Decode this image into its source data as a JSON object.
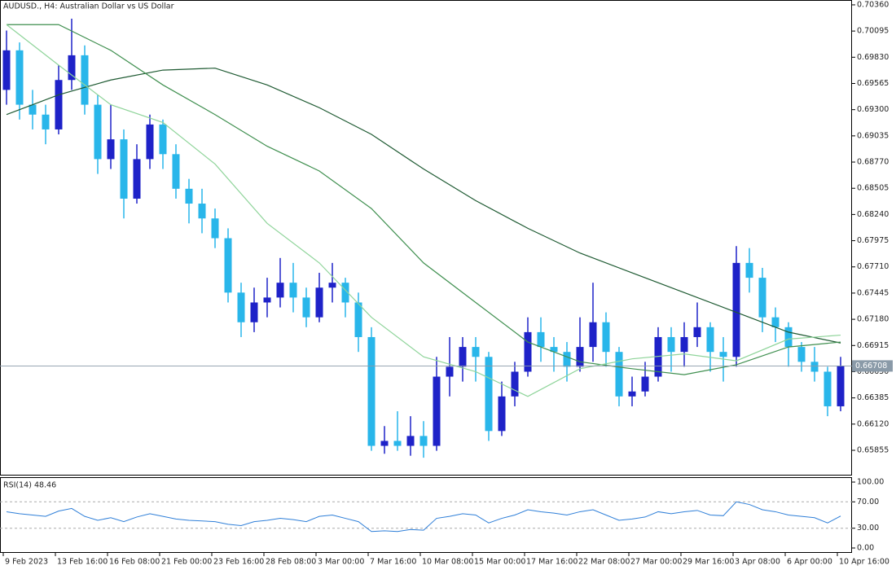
{
  "chart_data": {
    "type": "candlestick",
    "title": "AUDUSD., H4:  Australian Dollar vs US Dollar",
    "categories": [
      "9 Feb 2023",
      null,
      null,
      null,
      "13 Feb 16:00",
      null,
      null,
      null,
      "16 Feb 08:00",
      null,
      null,
      null,
      "21 Feb 00:00",
      null,
      null,
      null,
      "23 Feb 16:00",
      null,
      null,
      null,
      "28 Feb 08:00",
      null,
      null,
      null,
      "3 Mar 00:00",
      null,
      null,
      null,
      "7 Mar 16:00",
      null,
      null,
      null,
      "10 Mar 08:00",
      null,
      null,
      null,
      "15 Mar 00:00",
      null,
      null,
      null,
      "17 Mar 16:00",
      null,
      null,
      null,
      "22 Mar 08:00",
      null,
      null,
      null,
      "27 Mar 00:00",
      null,
      null,
      null,
      "29 Mar 16:00",
      null,
      null,
      null,
      "3 Apr 08:00",
      null,
      null,
      null,
      "6 Apr 00:00",
      null,
      null,
      null,
      "10 Apr 16:00"
    ],
    "open": [
      0.695,
      0.699,
      0.6935,
      0.6925,
      0.691,
      0.696,
      0.6985,
      0.6935,
      0.688,
      0.69,
      0.684,
      0.688,
      0.6915,
      0.6885,
      0.685,
      0.6835,
      0.682,
      0.68,
      0.6745,
      0.6715,
      0.6735,
      0.674,
      0.6755,
      0.674,
      0.672,
      0.675,
      0.6755,
      0.6735,
      0.67,
      0.659,
      0.6595,
      0.659,
      0.66,
      0.659,
      0.666,
      0.667,
      0.669,
      0.668,
      0.6605,
      0.664,
      0.6665,
      0.6705,
      0.669,
      0.6685,
      0.667,
      0.669,
      0.6715,
      0.6685,
      0.664,
      0.6645,
      0.666,
      0.67,
      0.6685,
      0.67,
      0.671,
      0.6685,
      0.668,
      0.6775,
      0.676,
      0.672,
      0.671,
      0.669,
      0.6675,
      0.6665,
      0.663
    ],
    "high": [
      0.701,
      0.6998,
      0.695,
      0.6935,
      0.6975,
      0.7022,
      0.6995,
      0.6945,
      0.6935,
      0.691,
      0.6895,
      0.6925,
      0.692,
      0.6895,
      0.686,
      0.685,
      0.683,
      0.681,
      0.6755,
      0.675,
      0.676,
      0.678,
      0.6775,
      0.675,
      0.6765,
      0.6775,
      0.676,
      0.6745,
      0.671,
      0.661,
      0.6625,
      0.662,
      0.6615,
      0.668,
      0.67,
      0.67,
      0.67,
      0.6685,
      0.6655,
      0.6675,
      0.672,
      0.672,
      0.67,
      0.6695,
      0.672,
      0.6755,
      0.6725,
      0.669,
      0.666,
      0.6675,
      0.671,
      0.671,
      0.6715,
      0.6735,
      0.6715,
      0.67,
      0.6792,
      0.679,
      0.677,
      0.673,
      0.6715,
      0.6695,
      0.669,
      0.667,
      0.668
    ],
    "low": [
      0.6935,
      0.692,
      0.691,
      0.6895,
      0.6905,
      0.695,
      0.6925,
      0.6865,
      0.687,
      0.682,
      0.6835,
      0.687,
      0.687,
      0.684,
      0.6815,
      0.6805,
      0.679,
      0.6735,
      0.67,
      0.6705,
      0.672,
      0.673,
      0.6725,
      0.671,
      0.6715,
      0.6735,
      0.672,
      0.6685,
      0.6585,
      0.6582,
      0.6585,
      0.658,
      0.6578,
      0.6585,
      0.664,
      0.6655,
      0.6655,
      0.6595,
      0.66,
      0.663,
      0.666,
      0.6675,
      0.6665,
      0.6655,
      0.6665,
      0.6675,
      0.667,
      0.663,
      0.663,
      0.664,
      0.6655,
      0.6665,
      0.667,
      0.669,
      0.6665,
      0.6655,
      0.667,
      0.6745,
      0.6705,
      0.6695,
      0.667,
      0.6665,
      0.6655,
      0.662,
      0.6625
    ],
    "close": [
      0.699,
      0.6935,
      0.6925,
      0.691,
      0.696,
      0.6985,
      0.6935,
      0.688,
      0.69,
      0.684,
      0.688,
      0.6915,
      0.6885,
      0.685,
      0.6835,
      0.682,
      0.68,
      0.6745,
      0.6715,
      0.6735,
      0.674,
      0.6755,
      0.674,
      0.672,
      0.675,
      0.6755,
      0.6735,
      0.67,
      0.659,
      0.6595,
      0.659,
      0.66,
      0.659,
      0.666,
      0.667,
      0.669,
      0.668,
      0.6605,
      0.664,
      0.6665,
      0.6705,
      0.669,
      0.6685,
      0.667,
      0.669,
      0.6715,
      0.6685,
      0.664,
      0.6645,
      0.666,
      0.67,
      0.6685,
      0.67,
      0.671,
      0.6685,
      0.668,
      0.6775,
      0.676,
      0.672,
      0.671,
      0.669,
      0.6675,
      0.6665,
      0.663,
      0.66708
    ],
    "up_color": "#1e22c8",
    "down_color": "#29b6ea",
    "lines": [
      {
        "color": "#1e5a32",
        "x": [
          0,
          4,
          8,
          12,
          16,
          20,
          24,
          28,
          32,
          36,
          40,
          44,
          48,
          52,
          56,
          60,
          64
        ],
        "values": [
          0.6925,
          0.6945,
          0.696,
          0.697,
          0.6972,
          0.6955,
          0.6932,
          0.6905,
          0.687,
          0.6838,
          0.681,
          0.6785,
          0.6765,
          0.6745,
          0.6725,
          0.6705,
          0.6694
        ]
      },
      {
        "color": "#3f8f4f",
        "x": [
          0,
          4,
          8,
          12,
          16,
          20,
          24,
          28,
          32,
          36,
          40,
          44,
          48,
          52,
          56,
          60,
          64
        ],
        "values": [
          0.7016,
          0.7016,
          0.699,
          0.6955,
          0.6925,
          0.6893,
          0.6868,
          0.683,
          0.6775,
          0.6735,
          0.6695,
          0.6675,
          0.6668,
          0.6662,
          0.6672,
          0.669,
          0.6695
        ]
      },
      {
        "color": "#8fd49a",
        "x": [
          0,
          4,
          8,
          12,
          16,
          20,
          24,
          28,
          32,
          36,
          40,
          44,
          48,
          52,
          56,
          60,
          64
        ],
        "values": [
          0.7016,
          0.6975,
          0.6935,
          0.6917,
          0.6875,
          0.6815,
          0.6775,
          0.672,
          0.668,
          0.6665,
          0.664,
          0.6668,
          0.6678,
          0.6683,
          0.6676,
          0.6698,
          0.6702
        ]
      }
    ],
    "ylim": [
      0.65608,
      0.70409
    ],
    "yticks": [
      {
        "value": 0.7036,
        "label": "0.70360"
      },
      {
        "value": 0.70095,
        "label": "0.70095"
      },
      {
        "value": 0.6983,
        "label": "0.69830"
      },
      {
        "value": 0.69565,
        "label": "0.69565"
      },
      {
        "value": 0.693,
        "label": "0.69300"
      },
      {
        "value": 0.69035,
        "label": "0.69035"
      },
      {
        "value": 0.6877,
        "label": "0.68770"
      },
      {
        "value": 0.68505,
        "label": "0.68505"
      },
      {
        "value": 0.6824,
        "label": "0.68240"
      },
      {
        "value": 0.67975,
        "label": "0.67975"
      },
      {
        "value": 0.6771,
        "label": "0.67710"
      },
      {
        "value": 0.67445,
        "label": "0.67445"
      },
      {
        "value": 0.6718,
        "label": "0.67180"
      },
      {
        "value": 0.66915,
        "label": "0.66915"
      },
      {
        "value": 0.6665,
        "label": "0.66650"
      },
      {
        "value": 0.66385,
        "label": "0.66385"
      },
      {
        "value": 0.6612,
        "label": "0.66120"
      },
      {
        "value": 0.65855,
        "label": "0.65855"
      }
    ],
    "last_price": {
      "value": 0.66708,
      "label": "0.66708"
    },
    "rsi": {
      "label": "RSI(14) 48.46",
      "color": "#2f7fd8",
      "values": [
        55,
        52,
        50,
        48,
        56,
        60,
        48,
        42,
        46,
        40,
        47,
        52,
        48,
        44,
        42,
        41,
        40,
        36,
        34,
        40,
        42,
        45,
        43,
        40,
        48,
        50,
        45,
        40,
        25,
        26,
        25,
        28,
        27,
        45,
        48,
        52,
        50,
        38,
        45,
        50,
        58,
        55,
        53,
        50,
        55,
        58,
        50,
        42,
        44,
        47,
        55,
        52,
        55,
        57,
        50,
        49,
        70,
        66,
        58,
        55,
        50,
        48,
        46,
        38,
        48.46
      ],
      "ylim": [
        -6.2,
        106.2
      ],
      "yticks": [
        {
          "value": 100,
          "label": "100.00"
        },
        {
          "value": 70,
          "label": "70.00"
        },
        {
          "value": 30,
          "label": "30.00"
        },
        {
          "value": 0,
          "label": "0.00"
        }
      ],
      "levels": [
        70,
        30
      ]
    }
  }
}
